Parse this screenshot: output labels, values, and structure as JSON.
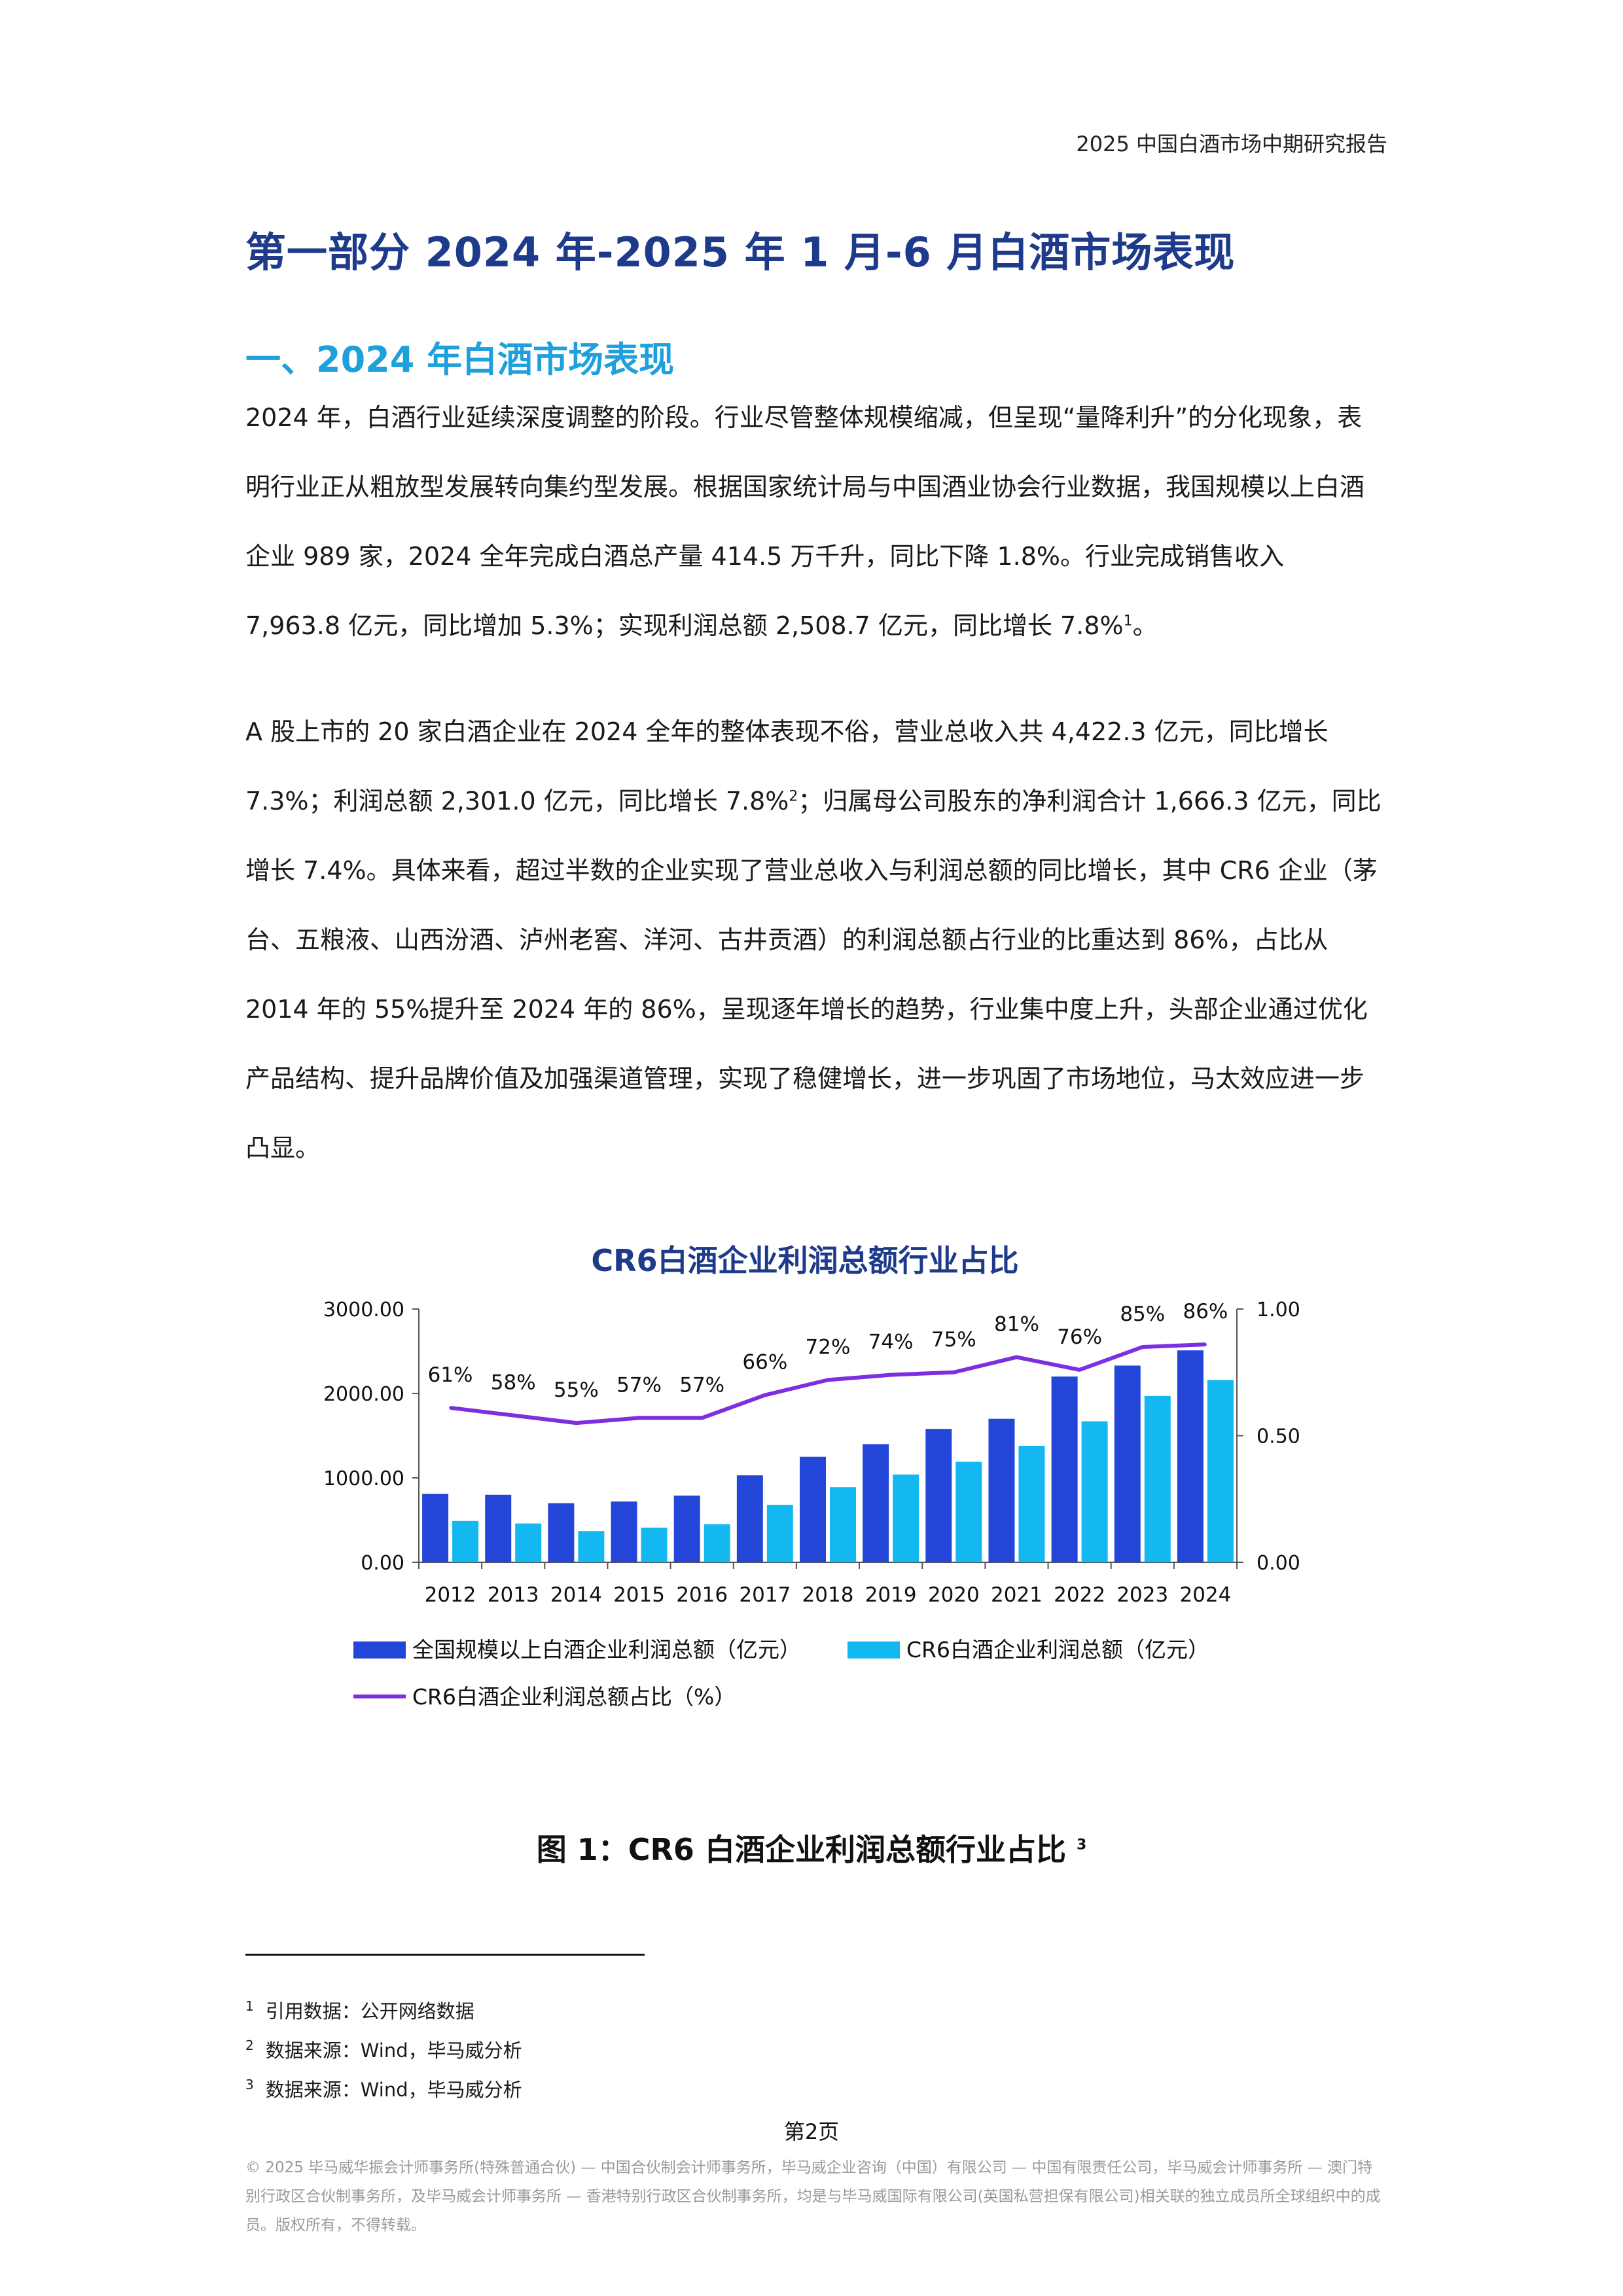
{
  "header": {
    "report_title": "2025 中国白酒市场中期研究报告"
  },
  "part_title": "第一部分 2024 年-2025 年 1 月-6 月白酒市场表现",
  "section_title": "一、2024 年白酒市场表现",
  "paragraph_1": {
    "text": "2024 年，白酒行业延续深度调整的阶段。行业尽管整体规模缩减，但呈现“量降利升”的分化现象，表明行业正从粗放型发展转向集约型发展。根据国家统计局与中国酒业协会行业数据，我国规模以上白酒企业 989 家，2024 全年完成白酒总产量 414.5 万千升，同比下降 1.8%。行业完成销售收入 7,963.8 亿元，同比增加 5.3%；实现利润总额 2,508.7 亿元，同比增长 7.8%",
    "ref": "1",
    "end": "。"
  },
  "paragraph_2": {
    "text_a": "A 股上市的 20 家白酒企业在 2024 全年的整体表现不俗，营业总收入共 4,422.3 亿元，同比增长 7.3%；利润总额 2,301.0 亿元，同比增长 7.8%",
    "ref": "2",
    "text_b": "；归属母公司股东的净利润合计 1,666.3 亿元，同比增长 7.4%。具体来看，超过半数的企业实现了营业总收入与利润总额的同比增长，其中 CR6 企业（茅台、五粮液、山西汾酒、泸州老窖、洋河、古井贡酒）的利润总额占行业的比重达到 86%，占比从 2014 年的 55%提升至 2024 年的 86%，呈现逐年增长的趋势，行业集中度上升，头部企业通过优化产品结构、提升品牌价值及加强渠道管理，实现了稳健增长，进一步巩固了市场地位，马太效应进一步凸显。"
  },
  "chart_data": {
    "type": "bar",
    "title": "CR6白酒企业利润总额行业占比",
    "categories": [
      "2012",
      "2013",
      "2014",
      "2015",
      "2016",
      "2017",
      "2018",
      "2019",
      "2020",
      "2021",
      "2022",
      "2023",
      "2024"
    ],
    "series": [
      {
        "name": "全国规模以上白酒企业利润总额（亿元）",
        "type": "bar",
        "axis": "left",
        "color": "#2346d9",
        "values": [
          810,
          800,
          700,
          720,
          790,
          1030,
          1250,
          1400,
          1580,
          1700,
          2200,
          2330,
          2510
        ]
      },
      {
        "name": "CR6白酒企业利润总额（亿元）",
        "type": "bar",
        "axis": "left",
        "color": "#13b8f0",
        "values": [
          490,
          460,
          370,
          410,
          450,
          680,
          890,
          1040,
          1190,
          1380,
          1670,
          1970,
          2160
        ]
      },
      {
        "name": "CR6白酒企业利润总额占比（%）",
        "type": "line",
        "axis": "right",
        "color": "#7b2fe0",
        "values": [
          0.61,
          0.58,
          0.55,
          0.57,
          0.57,
          0.66,
          0.72,
          0.74,
          0.75,
          0.81,
          0.76,
          0.85,
          0.86
        ],
        "labels": [
          "61%",
          "58%",
          "55%",
          "57%",
          "57%",
          "66%",
          "72%",
          "74%",
          "75%",
          "81%",
          "76%",
          "85%",
          "86%"
        ]
      }
    ],
    "ylim_left": [
      0,
      3000
    ],
    "ylim_right": [
      0,
      1
    ],
    "left_ticks": [
      "0.00",
      "1000.00",
      "2000.00",
      "3000.00"
    ],
    "right_ticks": [
      "0.00",
      "0.50",
      "1.00"
    ],
    "grid": false,
    "legend_position": "bottom"
  },
  "figure_caption": {
    "text": "图 1：CR6 白酒企业利润总额行业占比 ",
    "ref": "3"
  },
  "footnotes": [
    {
      "num": "1",
      "text": "引用数据：公开网络数据"
    },
    {
      "num": "2",
      "text": "数据来源：Wind，毕马威分析"
    },
    {
      "num": "3",
      "text": "数据来源：Wind，毕马威分析"
    }
  ],
  "page_number": "第2页",
  "copyright": "© 2025 毕马威华振会计师事务所(特殊普通合伙) — 中国合伙制会计师事务所，毕马威企业咨询（中国）有限公司 — 中国有限责任公司，毕马威会计师事务所 — 澳门特别行政区合伙制事务所，及毕马威会计师事务所 — 香港特别行政区合伙制事务所，均是与毕马威国际有限公司(英国私营担保有限公司)相关联的独立成员所全球组织中的成员。版权所有，不得转载。"
}
